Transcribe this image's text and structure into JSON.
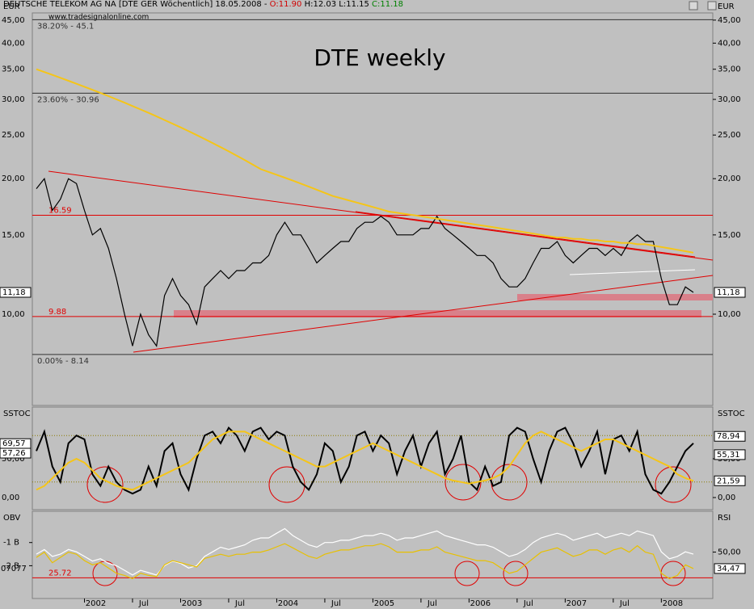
{
  "chart_data": [
    {
      "type": "line",
      "title": "DTE weekly",
      "header": "DEUTSCHE TELEKOM AG NA [DTE GER  Wöchentlich] 18.05.2008 -",
      "open": "O:11.90",
      "high": "H:12.03",
      "low": "L:11.15",
      "close": "C:11.18",
      "watermark": "www.tradesignalonline.com",
      "unit": "EUR",
      "log": true,
      "categories": [
        null,
        null,
        null,
        null,
        null,
        null,
        "2002",
        null,
        null,
        null,
        null,
        null,
        "Jul",
        null,
        null,
        null,
        null,
        null,
        "2003",
        null,
        null,
        null,
        null,
        null,
        "Jul",
        null,
        null,
        null,
        null,
        null,
        "2004",
        null,
        null,
        null,
        null,
        null,
        "Jul",
        null,
        null,
        null,
        null,
        null,
        "2005",
        null,
        null,
        null,
        null,
        null,
        "Jul",
        null,
        null,
        null,
        null,
        null,
        "2006",
        null,
        null,
        null,
        null,
        null,
        "Jul",
        null,
        null,
        null,
        null,
        null,
        "2007",
        null,
        null,
        null,
        null,
        null,
        "Jul",
        null,
        null,
        null,
        null,
        null,
        "2008",
        null,
        null,
        null,
        null
      ],
      "series": [
        {
          "color": "#000000",
          "values": [
            19,
            20,
            17,
            18,
            20,
            19.5,
            17,
            15,
            15.5,
            14,
            12,
            10,
            8.5,
            10,
            9,
            8.5,
            11,
            12,
            11,
            10.5,
            9.5,
            11.5,
            12,
            12.5,
            12,
            12.5,
            12.5,
            13,
            13,
            13.5,
            15,
            16,
            15,
            15,
            14,
            13,
            13.5,
            14,
            14.5,
            14.5,
            15.5,
            16,
            16,
            16.5,
            16,
            15,
            15,
            15,
            15.5,
            15.5,
            16.5,
            15.5,
            15,
            14.5,
            14,
            13.5,
            13.5,
            13,
            12,
            11.5,
            11.5,
            12,
            13,
            14,
            14,
            14.5,
            13.5,
            13,
            13.5,
            14,
            14,
            13.5,
            14,
            13.5,
            14.5,
            15,
            14.5,
            14.5,
            12,
            10.5,
            10.5,
            11.5,
            11.18
          ]
        },
        {
          "color": "#f5c518",
          "values": [
            35,
            34.5,
            34,
            33.5,
            33,
            32.5,
            32,
            31.5,
            31,
            30.5,
            30,
            29.5,
            29,
            28.5,
            28,
            27.5,
            27,
            26.5,
            26,
            25.5,
            25,
            24.5,
            24,
            23.5,
            23,
            22.5,
            22,
            21.5,
            21,
            20.7,
            20.4,
            20.1,
            19.8,
            19.5,
            19.2,
            18.9,
            18.6,
            18.3,
            18.1,
            17.9,
            17.7,
            17.5,
            17.3,
            17.1,
            16.9,
            16.8,
            16.7,
            16.6,
            16.5,
            16.4,
            16.3,
            16.2,
            16.1,
            16.0,
            15.9,
            15.8,
            15.7,
            15.6,
            15.5,
            15.4,
            15.3,
            15.2,
            15.1,
            15.0,
            14.9,
            14.8,
            14.8,
            14.7,
            14.7,
            14.6,
            14.6,
            14.5,
            14.5,
            14.4,
            14.4,
            14.3,
            14.3,
            14.2,
            14.1,
            14.0,
            13.9,
            13.8,
            13.7
          ]
        }
      ],
      "ylim": [
        6.27,
        46.3
      ],
      "yticks": [
        {
          "value": 10,
          "label": "10,00"
        },
        {
          "value": 15,
          "label": "15,00"
        },
        {
          "value": 20,
          "label": "20,00"
        },
        {
          "value": 25,
          "label": "25,00"
        },
        {
          "value": 30,
          "label": "30,00"
        },
        {
          "value": 35,
          "label": "35,00"
        },
        {
          "value": 40,
          "label": "40,00"
        },
        {
          "value": 45,
          "label": "45,00"
        }
      ],
      "levels": [
        16.59,
        9.88
      ],
      "fib_levels": [
        {
          "value": 45.1,
          "label": "38.20% - 45.1"
        },
        {
          "value": 30.96,
          "label": "23.60% - 30.96"
        },
        {
          "value": 8.14,
          "label": "0.00% - 8.14"
        }
      ],
      "last": {
        "value": 11.18,
        "label": "11,18"
      }
    },
    {
      "type": "line",
      "title": "SSTOC",
      "series": [
        {
          "color": "#000000",
          "values": [
            60,
            85,
            40,
            20,
            70,
            80,
            75,
            30,
            15,
            40,
            20,
            10,
            5,
            10,
            40,
            15,
            60,
            70,
            30,
            10,
            50,
            80,
            85,
            70,
            90,
            80,
            60,
            85,
            90,
            75,
            85,
            80,
            40,
            20,
            10,
            30,
            70,
            60,
            20,
            40,
            80,
            85,
            60,
            80,
            70,
            30,
            60,
            80,
            40,
            70,
            85,
            30,
            50,
            80,
            20,
            10,
            40,
            15,
            20,
            80,
            90,
            85,
            50,
            20,
            60,
            85,
            90,
            70,
            40,
            60,
            85,
            30,
            75,
            80,
            60,
            85,
            30,
            10,
            5,
            20,
            40,
            60,
            70
          ]
        },
        {
          "color": "#f5c518",
          "values": [
            10,
            15,
            25,
            35,
            45,
            50,
            45,
            35,
            25,
            20,
            15,
            12,
            10,
            15,
            20,
            25,
            30,
            35,
            40,
            45,
            55,
            65,
            75,
            80,
            85,
            85,
            85,
            80,
            75,
            70,
            65,
            60,
            55,
            50,
            45,
            40,
            40,
            45,
            50,
            55,
            60,
            65,
            70,
            65,
            60,
            55,
            50,
            45,
            40,
            35,
            30,
            25,
            22,
            20,
            18,
            20,
            22,
            25,
            30,
            40,
            55,
            70,
            80,
            85,
            80,
            75,
            70,
            65,
            60,
            65,
            70,
            75,
            75,
            70,
            65,
            60,
            55,
            50,
            45,
            40,
            30,
            25,
            21.59
          ]
        }
      ],
      "ylim": [
        -14.6,
        114.6
      ],
      "yticks": [
        {
          "value": 0,
          "label": "0,00"
        },
        {
          "value": 50,
          "label": "50,00"
        }
      ],
      "levels": [
        20,
        80
      ],
      "left_labels": [
        {
          "value": 69.57,
          "label": "69,57"
        },
        {
          "value": 57.26,
          "label": "57,26"
        }
      ],
      "right_labels": [
        {
          "value": 78.94,
          "label": "78,94"
        },
        {
          "value": 55.31,
          "label": "55,31"
        },
        {
          "value": 21.59,
          "label": "21,59"
        }
      ]
    },
    {
      "type": "line",
      "title": "OBV",
      "title_right": "RSI",
      "obv_label": "07077",
      "series": [
        {
          "color": "#ffffff",
          "axis": "y2",
          "values": [
            -1.5,
            -1.3,
            -1.6,
            -1.5,
            -1.3,
            -1.4,
            -1.6,
            -1.8,
            -1.7,
            -1.9,
            -2.0,
            -2.2,
            -2.4,
            -2.2,
            -2.3,
            -2.4,
            -2.0,
            -1.8,
            -1.9,
            -2.1,
            -2.0,
            -1.6,
            -1.4,
            -1.2,
            -1.3,
            -1.2,
            -1.1,
            -0.9,
            -0.8,
            -0.8,
            -0.6,
            -0.4,
            -0.7,
            -0.9,
            -1.1,
            -1.2,
            -1.0,
            -1.0,
            -0.9,
            -0.9,
            -0.8,
            -0.7,
            -0.7,
            -0.6,
            -0.7,
            -0.9,
            -0.8,
            -0.8,
            -0.7,
            -0.6,
            -0.5,
            -0.7,
            -0.8,
            -0.9,
            -1.0,
            -1.1,
            -1.1,
            -1.2,
            -1.4,
            -1.6,
            -1.5,
            -1.3,
            -1.0,
            -0.8,
            -0.7,
            -0.6,
            -0.7,
            -0.9,
            -0.8,
            -0.7,
            -0.6,
            -0.8,
            -0.7,
            -0.6,
            -0.7,
            -0.5,
            -0.6,
            -0.7,
            -1.4,
            -1.7,
            -1.6,
            -1.4,
            -1.5
          ]
        },
        {
          "color": "#e8c000",
          "values": [
            45,
            50,
            40,
            45,
            50,
            48,
            42,
            38,
            40,
            35,
            30,
            28,
            25,
            30,
            28,
            27,
            38,
            42,
            40,
            38,
            36,
            44,
            46,
            48,
            46,
            48,
            48,
            50,
            50,
            52,
            55,
            58,
            54,
            50,
            46,
            44,
            48,
            50,
            52,
            52,
            54,
            56,
            56,
            58,
            55,
            50,
            50,
            50,
            52,
            52,
            55,
            50,
            48,
            46,
            44,
            42,
            42,
            40,
            35,
            30,
            32,
            38,
            44,
            50,
            52,
            54,
            50,
            46,
            48,
            52,
            52,
            48,
            52,
            54,
            50,
            56,
            50,
            48,
            30,
            25,
            28,
            38,
            34.47
          ]
        }
      ],
      "ylim": [
        7,
        87
      ],
      "yticks": [
        {
          "value": 50,
          "label": "50,00"
        }
      ],
      "y2lim": [
        -3.38,
        0.28
      ],
      "y2ticks": [
        {
          "value": -1,
          "label": "-1 B"
        },
        {
          "value": -2,
          "label": "-2 B"
        }
      ],
      "levels": [
        25.72
      ],
      "right_labels": [
        {
          "value": 34.47,
          "label": "34,47"
        }
      ]
    }
  ]
}
